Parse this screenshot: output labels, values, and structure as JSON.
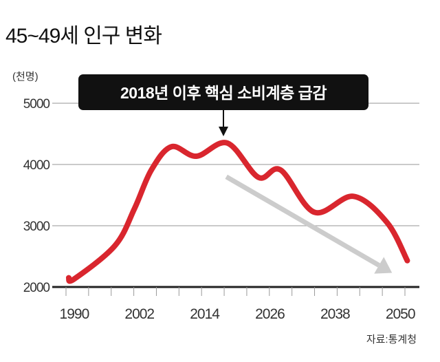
{
  "chart_data": {
    "type": "line",
    "title": "45~49세 인구 변화",
    "ylabel": "(천명)",
    "xlabel": "",
    "source": "자료:통계청",
    "annotation": "2018년 이후 핵심 소비계층 급감",
    "ylim": [
      2000,
      5000
    ],
    "xlim": [
      1989,
      2052
    ],
    "yticks": [
      "2000",
      "3000",
      "4000",
      "5000"
    ],
    "xticks": [
      "1990",
      "2002",
      "2014",
      "2026",
      "2038",
      "2050"
    ],
    "grid": true,
    "series": [
      {
        "name": "45~49세 인구",
        "color": "#d9262e",
        "x": [
          1989.5,
          1990.5,
          1998,
          2001.6,
          2004.7,
          2008.4,
          2013,
          2018.7,
          2024.4,
          2028.5,
          2034.7,
          2041.9,
          2048.1,
          2051.8
        ],
        "y": [
          2150,
          2130,
          2674,
          3280,
          3910,
          4290,
          4135,
          4350,
          3790,
          3910,
          3220,
          3480,
          3050,
          2430
        ]
      }
    ],
    "trend_arrow": {
      "color": "#cccccc",
      "from": [
        2018.5,
        3800
      ],
      "to": [
        2049,
        2230
      ]
    }
  }
}
